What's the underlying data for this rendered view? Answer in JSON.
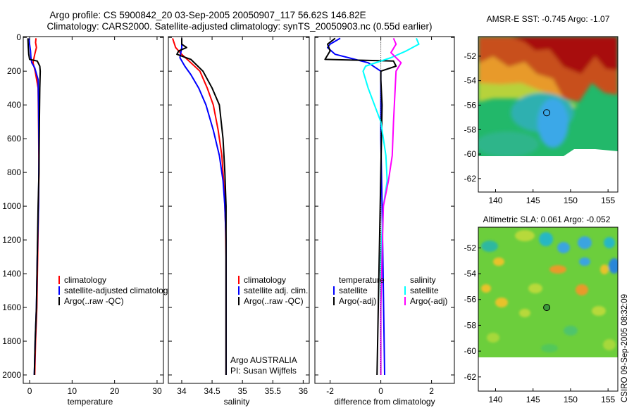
{
  "title": {
    "line1": "Argo profile: CS 5900842_20 03-Sep-2005 20050907_117 56.62S 146.82E",
    "line2": "Climatology: CARS2000. Satellite-adjusted climatology: synTS_20050903.nc (0.55d earlier)"
  },
  "credit": "CSIRO 09-Sep-2005 08:32:09",
  "colors": {
    "climatology": "#ff0000",
    "satellite": "#0000ff",
    "argo": "#000000",
    "satellite_sal": "#00ffff",
    "argo_sal": "#ff00ff"
  },
  "chart_data": [
    {
      "type": "line",
      "name": "temperature-profile",
      "xlabel": "temperature",
      "xlim": [
        -1.5,
        31.5
      ],
      "ylim": [
        2050,
        -5
      ],
      "xticks": [
        0,
        10,
        20,
        30
      ],
      "yticks": [
        0,
        200,
        400,
        600,
        800,
        1000,
        1200,
        1400,
        1600,
        1800,
        2000
      ],
      "legend": [
        "climatology",
        "satellite-adjusted climatology",
        "Argo(..raw -QC)"
      ],
      "series": [
        {
          "name": "climatology",
          "color": "#ff0000",
          "width": 2,
          "points": [
            [
              1.5,
              5
            ],
            [
              1.4,
              30
            ],
            [
              1.6,
              60
            ],
            [
              1.2,
              100
            ],
            [
              0.8,
              150
            ],
            [
              1.3,
              200
            ],
            [
              2.0,
              300
            ],
            [
              2.1,
              500
            ],
            [
              2.2,
              800
            ],
            [
              2.1,
              1000
            ],
            [
              1.9,
              1300
            ],
            [
              1.7,
              1600
            ],
            [
              1.4,
              1800
            ],
            [
              1.2,
              2000
            ]
          ]
        },
        {
          "name": "satellite-adjusted climatology",
          "color": "#0000ff",
          "width": 2,
          "points": [
            [
              -0.1,
              5
            ],
            [
              0.0,
              40
            ],
            [
              0.2,
              80
            ],
            [
              0.3,
              120
            ],
            [
              0.5,
              150
            ],
            [
              1.2,
              180
            ],
            [
              2.0,
              250
            ],
            [
              2.1,
              400
            ],
            [
              2.2,
              700
            ],
            [
              2.1,
              1000
            ],
            [
              1.8,
              1300
            ],
            [
              1.6,
              1600
            ],
            [
              1.3,
              1800
            ],
            [
              1.1,
              2000
            ]
          ]
        },
        {
          "name": "Argo(..raw -QC)",
          "color": "#000000",
          "width": 2,
          "points": [
            [
              -0.4,
              5
            ],
            [
              -0.3,
              60
            ],
            [
              -0.2,
              100
            ],
            [
              0.0,
              130
            ],
            [
              1.8,
              140
            ],
            [
              2.4,
              170
            ],
            [
              2.5,
              200
            ],
            [
              2.4,
              300
            ],
            [
              2.3,
              500
            ],
            [
              2.2,
              800
            ],
            [
              2.0,
              1000
            ],
            [
              1.8,
              1300
            ],
            [
              1.6,
              1600
            ],
            [
              1.3,
              1800
            ],
            [
              1.1,
              2000
            ]
          ]
        }
      ]
    },
    {
      "type": "line",
      "name": "salinity-profile",
      "xlabel": "salinity",
      "xlim": [
        33.78,
        36.1
      ],
      "ylim": [
        2050,
        -5
      ],
      "xticks": [
        34,
        34.5,
        35,
        35.5,
        36
      ],
      "legend": [
        "climatology",
        "satellite adj. clim.",
        "Argo(..raw -QC)"
      ],
      "annotation": [
        "Argo AUSTRALIA",
        "PI: Susan Wijffels"
      ],
      "series": [
        {
          "name": "climatology",
          "color": "#ff0000",
          "width": 2,
          "points": [
            [
              33.85,
              5
            ],
            [
              33.9,
              60
            ],
            [
              34.0,
              100
            ],
            [
              34.15,
              150
            ],
            [
              34.3,
              200
            ],
            [
              34.42,
              300
            ],
            [
              34.52,
              400
            ],
            [
              34.6,
              550
            ],
            [
              34.66,
              700
            ],
            [
              34.7,
              900
            ],
            [
              34.72,
              1100
            ],
            [
              34.73,
              1300
            ],
            [
              34.73,
              1500
            ],
            [
              34.73,
              1800
            ],
            [
              34.73,
              2000
            ]
          ]
        },
        {
          "name": "satellite adj. clim.",
          "color": "#0000ff",
          "width": 2,
          "points": [
            [
              34.0,
              5
            ],
            [
              34.0,
              60
            ],
            [
              33.97,
              120
            ],
            [
              34.05,
              170
            ],
            [
              34.15,
              220
            ],
            [
              34.28,
              300
            ],
            [
              34.4,
              400
            ],
            [
              34.52,
              550
            ],
            [
              34.62,
              700
            ],
            [
              34.68,
              850
            ],
            [
              34.71,
              1000
            ],
            [
              34.73,
              1200
            ],
            [
              34.73,
              1500
            ],
            [
              34.73,
              1800
            ],
            [
              34.73,
              2000
            ]
          ]
        },
        {
          "name": "Argo(..raw -QC)",
          "color": "#000000",
          "width": 2,
          "points": [
            [
              34.0,
              5
            ],
            [
              34.0,
              40
            ],
            [
              34.08,
              60
            ],
            [
              33.95,
              80
            ],
            [
              33.92,
              100
            ],
            [
              34.15,
              130
            ],
            [
              34.35,
              200
            ],
            [
              34.5,
              300
            ],
            [
              34.62,
              400
            ],
            [
              34.68,
              600
            ],
            [
              34.71,
              800
            ],
            [
              34.73,
              1000
            ],
            [
              34.73,
              1300
            ],
            [
              34.73,
              1600
            ],
            [
              34.73,
              1800
            ],
            [
              34.73,
              2000
            ]
          ]
        }
      ]
    },
    {
      "type": "line",
      "name": "difference-profile",
      "xlabel": "difference from climatology",
      "xlim": [
        -2.6,
        2.9
      ],
      "ylim": [
        2050,
        -5
      ],
      "xticks": [
        -2,
        0,
        2
      ],
      "legend_temperature": [
        "temperature",
        "satellite",
        "Argo(-adj)"
      ],
      "legend_salinity": [
        "salinity",
        "satellite",
        "Argo(-adj)"
      ],
      "series": [
        {
          "name": "temperature satellite",
          "color": "#0000ff",
          "width": 2,
          "points": [
            [
              -1.6,
              5
            ],
            [
              -2.0,
              40
            ],
            [
              -2.1,
              60
            ],
            [
              -1.8,
              100
            ],
            [
              -0.5,
              150
            ],
            [
              0.0,
              200
            ],
            [
              0.0,
              300
            ],
            [
              0.0,
              600
            ],
            [
              0.05,
              1000
            ],
            [
              0.1,
              1500
            ],
            [
              0.15,
              2000
            ]
          ]
        },
        {
          "name": "temperature Argo(-adj)",
          "color": "#000000",
          "width": 2,
          "points": [
            [
              -1.8,
              5
            ],
            [
              -2.1,
              40
            ],
            [
              -2.0,
              80
            ],
            [
              -2.2,
              130
            ],
            [
              0.5,
              140
            ],
            [
              0.6,
              170
            ],
            [
              0.0,
              200
            ],
            [
              0.0,
              250
            ],
            [
              0.05,
              400
            ],
            [
              0.0,
              800
            ],
            [
              -0.05,
              1200
            ],
            [
              -0.1,
              1600
            ],
            [
              -0.15,
              2000
            ]
          ]
        },
        {
          "name": "salinity satellite",
          "color": "#00ffff",
          "width": 2,
          "points": [
            [
              1.4,
              5
            ],
            [
              1.5,
              40
            ],
            [
              1.0,
              80
            ],
            [
              0.4,
              120
            ],
            [
              -0.6,
              170
            ],
            [
              -0.7,
              200
            ],
            [
              -0.5,
              300
            ],
            [
              0.0,
              500
            ],
            [
              0.2,
              700
            ],
            [
              0.25,
              850
            ],
            [
              0.1,
              1000
            ],
            [
              0.0,
              1300
            ],
            [
              0.0,
              1600
            ],
            [
              0.0,
              2000
            ]
          ]
        },
        {
          "name": "salinity Argo(-adj)",
          "color": "#ff00ff",
          "width": 2,
          "points": [
            [
              0.5,
              5
            ],
            [
              0.6,
              40
            ],
            [
              0.4,
              90
            ],
            [
              0.8,
              150
            ],
            [
              0.6,
              200
            ],
            [
              0.55,
              350
            ],
            [
              0.5,
              500
            ],
            [
              0.45,
              700
            ],
            [
              0.3,
              850
            ],
            [
              0.1,
              1000
            ],
            [
              0.05,
              1300
            ],
            [
              0.0,
              1600
            ],
            [
              0.0,
              2000
            ]
          ]
        },
        {
          "name": "zero line",
          "color": "#000000",
          "width": 1,
          "dotted": true,
          "points": [
            [
              0,
              5
            ],
            [
              0,
              2000
            ]
          ]
        }
      ]
    },
    {
      "type": "heatmap",
      "name": "amsr-e-sst-map",
      "title": "AMSR-E SST: -0.745 Argo: -1.07",
      "xlim": [
        137.7,
        156.3
      ],
      "ylim": [
        -63.1,
        -50.4
      ],
      "xticks": [
        140,
        145,
        150,
        155
      ],
      "yticks": [
        -52,
        -54,
        -56,
        -58,
        -60,
        -62
      ],
      "marker": {
        "lon": 146.82,
        "lat": -56.62
      },
      "data_south_limit": -60
    },
    {
      "type": "heatmap",
      "name": "altimetric-sla-map",
      "title": "Altimetric SLA: 0.061 Argo: -0.052",
      "xlim": [
        137.7,
        156.3
      ],
      "ylim": [
        -63.1,
        -50.4
      ],
      "xticks": [
        140,
        145,
        150,
        155
      ],
      "yticks": [
        -52,
        -54,
        -56,
        -58,
        -60,
        -62
      ],
      "marker": {
        "lon": 146.82,
        "lat": -56.62
      },
      "data_south_limit": -60
    }
  ]
}
